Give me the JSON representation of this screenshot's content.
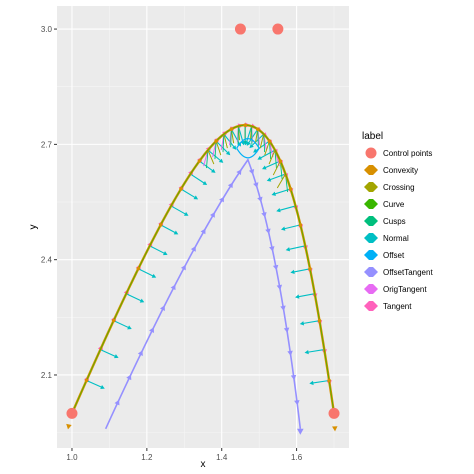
{
  "chart_data": {
    "type": "scatter",
    "xlabel": "x",
    "ylabel": "y",
    "xlim": [
      0.96,
      1.74
    ],
    "ylim": [
      1.91,
      3.06
    ],
    "x_ticks": [
      1.0,
      1.2,
      1.4,
      1.6
    ],
    "x_tick_labels": [
      "1.0",
      "1.2",
      "1.4",
      "1.6"
    ],
    "y_ticks": [
      2.1,
      2.4,
      2.7,
      3.0
    ],
    "y_tick_labels": [
      "2.1",
      "2.4",
      "2.7",
      "3.0"
    ],
    "grid": true,
    "legend": {
      "title": "label",
      "position": "right",
      "entries": [
        {
          "name": "Control points",
          "color": "#F8766D"
        },
        {
          "name": "Convexity",
          "color": "#D89000"
        },
        {
          "name": "Crossing",
          "color": "#A3A500"
        },
        {
          "name": "Curve",
          "color": "#39B600"
        },
        {
          "name": "Cusps",
          "color": "#00BF7D"
        },
        {
          "name": "Normal",
          "color": "#00BFC4"
        },
        {
          "name": "Offset",
          "color": "#00B0F6"
        },
        {
          "name": "OffsetTangent",
          "color": "#9590FF"
        },
        {
          "name": "OrigTangent",
          "color": "#E76BF3"
        },
        {
          "name": "Tangent",
          "color": "#FF62BC"
        }
      ]
    },
    "control_points": [
      {
        "x": 1.0,
        "y": 2.0
      },
      {
        "x": 1.45,
        "y": 3.0
      },
      {
        "x": 1.55,
        "y": 3.0
      },
      {
        "x": 1.7,
        "y": 2.0
      }
    ],
    "offset_path": {
      "start": {
        "x": 1.09,
        "y": 1.96
      },
      "cusp": {
        "x": 1.47,
        "y": 2.66
      },
      "end": {
        "x": 1.61,
        "y": 1.96
      }
    }
  }
}
